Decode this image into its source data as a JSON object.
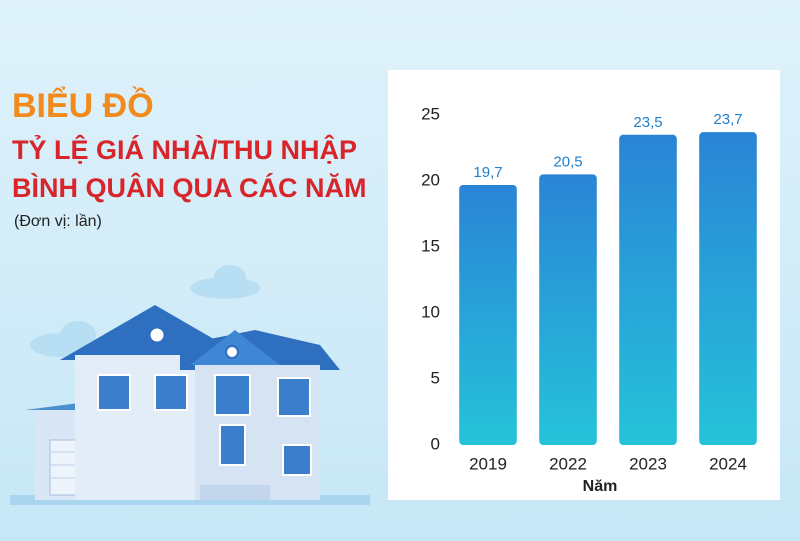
{
  "chart_data": {
    "type": "bar",
    "title": "BIỂU ĐỒ",
    "subtitle": [
      "TỶ LỆ GIÁ NHÀ/THU NHẬP",
      "BÌNH QUÂN QUA CÁC NĂM"
    ],
    "unit_note": "(Đơn vị: lần)",
    "x_label": "Năm",
    "categories": [
      "2019",
      "2022",
      "2023",
      "2024"
    ],
    "values": [
      19.7,
      20.5,
      23.5,
      23.7
    ],
    "value_labels": [
      "19,7",
      "20,5",
      "23,5",
      "23,7"
    ],
    "color": "#2a84d6",
    "ylim": [
      0,
      25
    ],
    "yticks": [
      0,
      5,
      10,
      15,
      20,
      25
    ],
    "grid": false
  }
}
